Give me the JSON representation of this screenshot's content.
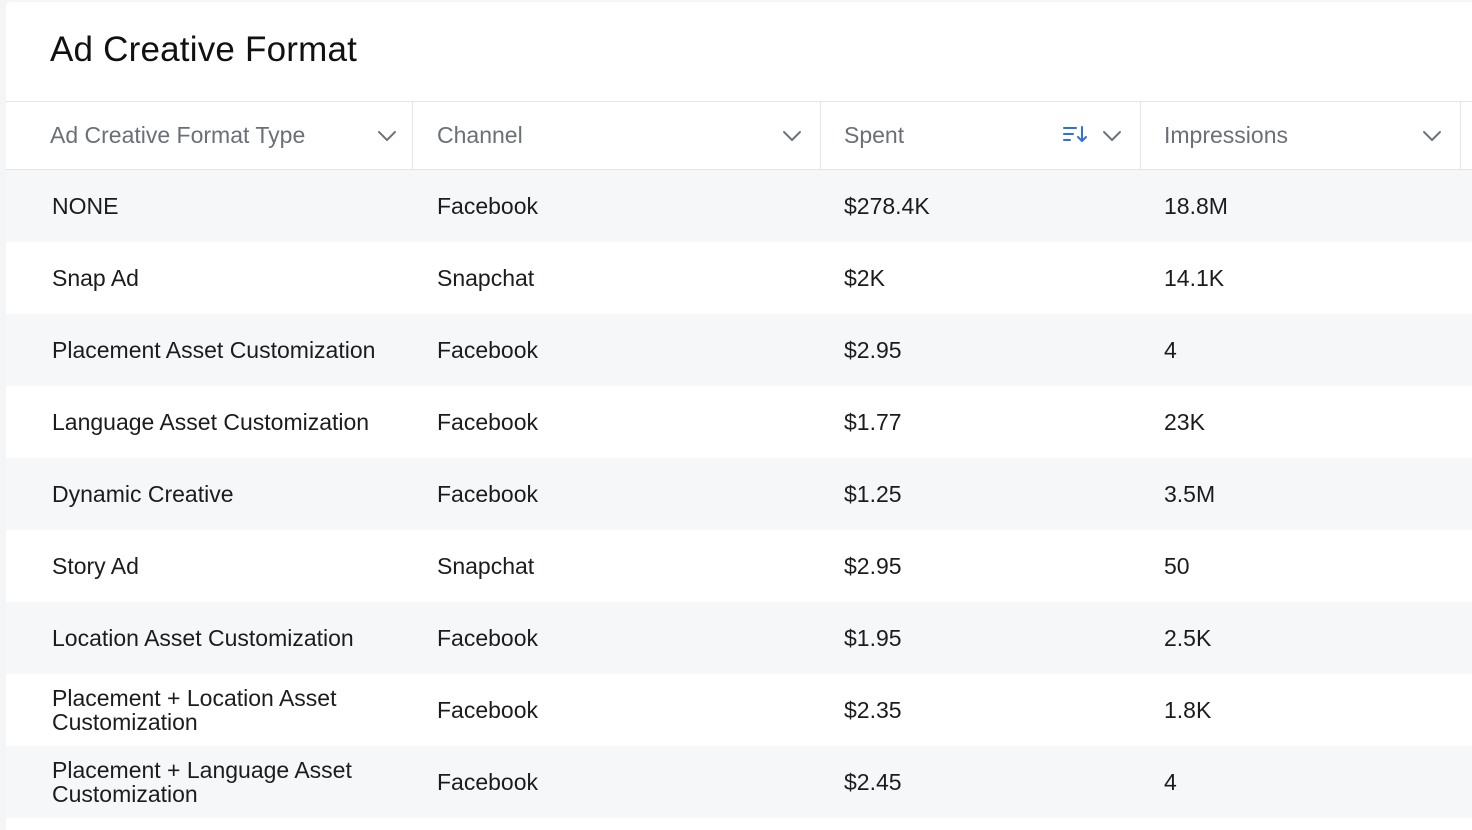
{
  "widget": {
    "title": "Ad Creative Format"
  },
  "table": {
    "columns": [
      {
        "label": "Ad Creative Format Type",
        "sorted": false
      },
      {
        "label": "Channel",
        "sorted": false
      },
      {
        "label": "Spent",
        "sorted": true
      },
      {
        "label": "Impressions",
        "sorted": false
      }
    ],
    "rows": [
      {
        "format_type": "NONE",
        "channel": "Facebook",
        "spent": "$278.4K",
        "impressions": "18.8M"
      },
      {
        "format_type": "Snap Ad",
        "channel": "Snapchat",
        "spent": "$2K",
        "impressions": "14.1K"
      },
      {
        "format_type": "Placement Asset Customization",
        "channel": "Facebook",
        "spent": "$2.95",
        "impressions": "4"
      },
      {
        "format_type": "Language Asset Customization",
        "channel": "Facebook",
        "spent": "$1.77",
        "impressions": "23K"
      },
      {
        "format_type": "Dynamic Creative",
        "channel": "Facebook",
        "spent": "$1.25",
        "impressions": "3.5M"
      },
      {
        "format_type": "Story Ad",
        "channel": "Snapchat",
        "spent": "$2.95",
        "impressions": "50"
      },
      {
        "format_type": "Location Asset Customization",
        "channel": "Facebook",
        "spent": "$1.95",
        "impressions": "2.5K"
      },
      {
        "format_type": "Placement + Location Asset Customization",
        "channel": "Facebook",
        "spent": "$2.35",
        "impressions": "1.8K"
      },
      {
        "format_type": "Placement + Language Asset Customization",
        "channel": "Facebook",
        "spent": "$2.45",
        "impressions": "4"
      }
    ]
  },
  "colors": {
    "accent": "#2f6fe4",
    "header_text": "#6b6f76",
    "row_alt": "#f6f7f9"
  },
  "icons": {
    "column_menu": "chevron-down-icon",
    "sort": "sort-descending-icon"
  }
}
